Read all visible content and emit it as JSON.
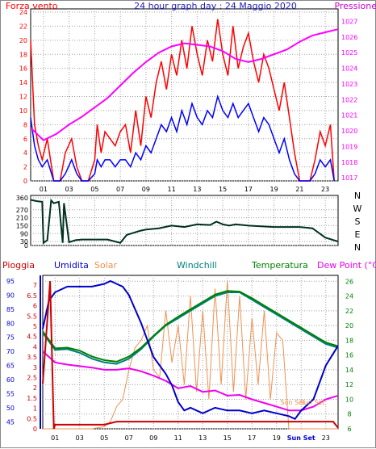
{
  "colors": {
    "wind_speed": "#ff0000",
    "wind_gust_low": "#0000ff",
    "pressure": "#ff00ff",
    "direction": "#003020",
    "rain": "#cc0000",
    "humidity": "#0000cc",
    "solar": "#f09050",
    "windchill": "#008080",
    "temperature": "#008000",
    "dewpoint": "#ee00ee",
    "grid": "#a0a0a0"
  },
  "chart_data": [
    {
      "type": "line",
      "title": "24 hour graph day : 24 Maggio 2020",
      "title_left": "Forza vento",
      "title_right": "Pressione",
      "xlabel": "",
      "ylabel": "",
      "x_tick_labels": [
        "01",
        "03",
        "05",
        "07",
        "09",
        "11",
        "13",
        "15",
        "17",
        "19",
        "21",
        "23"
      ],
      "left_axis": {
        "ticks": [
          0,
          2,
          4,
          6,
          8,
          10,
          12,
          14,
          16,
          18,
          20,
          22,
          24
        ],
        "ylim": [
          0,
          24
        ]
      },
      "right_axis": {
        "ticks": [
          1017,
          1018,
          1019,
          1020,
          1021,
          1022,
          1023,
          1024,
          1025,
          1026,
          1027
        ],
        "ylim": [
          1016.8,
          1027.8
        ]
      },
      "grid": true,
      "series": [
        {
          "name": "Forza vento",
          "axis": "left",
          "x": [
            0,
            0.3,
            0.6,
            0.9,
            1.3,
            1.8,
            2.3,
            2.7,
            3.2,
            3.6,
            4.0,
            4.5,
            5.0,
            5.2,
            5.5,
            5.8,
            6.2,
            6.6,
            7.0,
            7.4,
            7.8,
            8.2,
            8.6,
            9.0,
            9.4,
            9.8,
            10.2,
            10.6,
            11.0,
            11.4,
            11.8,
            12.2,
            12.6,
            13.0,
            13.4,
            13.8,
            14.2,
            14.6,
            15.0,
            15.4,
            15.8,
            16.2,
            16.6,
            17.0,
            17.4,
            17.8,
            18.2,
            18.6,
            19.0,
            19.4,
            19.8,
            20.2,
            20.6,
            21.0,
            21.4,
            21.8,
            22.2,
            22.6,
            23.0,
            23.4,
            23.7
          ],
          "y": [
            20,
            8,
            5,
            3,
            6,
            0,
            0,
            4,
            6,
            2,
            0,
            0,
            3,
            8,
            4,
            7,
            6,
            5,
            7,
            8,
            4,
            10,
            5,
            12,
            9,
            14,
            17,
            13,
            18,
            15,
            20,
            16,
            22,
            18,
            15,
            20,
            17,
            23,
            18,
            15,
            22,
            16,
            19,
            21,
            17,
            14,
            18,
            16,
            13,
            10,
            14,
            9,
            4,
            0,
            0,
            0,
            3,
            7,
            5,
            8,
            0
          ]
        },
        {
          "name": "wind low",
          "axis": "left",
          "x": [
            0,
            0.3,
            0.6,
            0.9,
            1.3,
            1.8,
            2.3,
            2.7,
            3.2,
            3.6,
            4.0,
            4.5,
            5.0,
            5.2,
            5.5,
            5.8,
            6.2,
            6.6,
            7.0,
            7.4,
            7.8,
            8.2,
            8.6,
            9.0,
            9.4,
            9.8,
            10.2,
            10.6,
            11.0,
            11.4,
            11.8,
            12.2,
            12.6,
            13.0,
            13.4,
            13.8,
            14.2,
            14.6,
            15.0,
            15.4,
            15.8,
            16.2,
            16.6,
            17.0,
            17.4,
            17.8,
            18.2,
            18.6,
            19.0,
            19.4,
            19.8,
            20.2,
            20.6,
            21.0,
            21.4,
            21.8,
            22.2,
            22.6,
            23.0,
            23.4,
            23.7
          ],
          "y": [
            9,
            5,
            3,
            2,
            3,
            0,
            0,
            1,
            3,
            1,
            0,
            0,
            1,
            3,
            2,
            3,
            3,
            2,
            3,
            3,
            2,
            4,
            3,
            5,
            4,
            6,
            8,
            7,
            9,
            7,
            10,
            8,
            11,
            9,
            8,
            10,
            9,
            12,
            10,
            9,
            11,
            9,
            10,
            11,
            9,
            7,
            9,
            8,
            6,
            4,
            6,
            3,
            1,
            0,
            0,
            0,
            1,
            3,
            2,
            3,
            0
          ]
        },
        {
          "name": "Pressione",
          "axis": "right",
          "x": [
            0,
            1,
            2,
            3,
            4,
            5,
            6,
            7,
            8,
            9,
            10,
            11,
            12,
            13,
            14,
            15,
            16,
            17,
            18,
            19,
            20,
            21,
            22,
            23,
            24
          ],
          "y": [
            1020.2,
            1019.4,
            1019.8,
            1020.4,
            1020.9,
            1021.5,
            1022.1,
            1022.9,
            1023.7,
            1024.4,
            1025.0,
            1025.4,
            1025.6,
            1025.5,
            1025.4,
            1025.1,
            1024.6,
            1024.4,
            1024.6,
            1024.9,
            1025.2,
            1025.7,
            1026.1,
            1026.3,
            1026.5
          ]
        }
      ]
    },
    {
      "type": "line",
      "title": "",
      "xlabel": "",
      "ylabel": "",
      "left_axis": {
        "ticks": [
          0,
          30,
          90,
          150,
          210,
          270,
          360
        ],
        "ylim": [
          0,
          360
        ]
      },
      "right_axis": {
        "labels": [
          "N",
          "W",
          "S",
          "E",
          "N"
        ]
      },
      "grid": true,
      "series": [
        {
          "name": "direzione",
          "x": [
            0,
            0.5,
            0.9,
            1.0,
            1.3,
            1.6,
            1.8,
            2.2,
            2.5,
            2.6,
            3.0,
            3.5,
            4.0,
            5.0,
            6.0,
            7.0,
            7.5,
            8.0,
            8.5,
            9.0,
            10.0,
            11.0,
            12.0,
            13.0,
            14.0,
            14.5,
            15.0,
            15.5,
            16.0,
            17.0,
            18.0,
            19.0,
            20.0,
            21.0,
            22.0,
            23.0,
            24.0
          ],
          "y": [
            345,
            335,
            330,
            20,
            40,
            340,
            320,
            330,
            20,
            320,
            25,
            40,
            45,
            45,
            45,
            20,
            80,
            95,
            110,
            120,
            130,
            150,
            140,
            160,
            155,
            180,
            160,
            150,
            160,
            150,
            145,
            140,
            140,
            140,
            130,
            60,
            30
          ]
        }
      ]
    },
    {
      "type": "line",
      "title": "",
      "xlabel": "",
      "ylabel": "",
      "legend": [
        "Pioggia",
        "Umidita",
        "Solar",
        "Windchill",
        "Temperatura",
        "Dew Point (°C)"
      ],
      "rain_axis": {
        "ticks": [
          0,
          0.5,
          1,
          1.5,
          2,
          2.5,
          3,
          3.5,
          4,
          4.5,
          5,
          5.5,
          6,
          6.5,
          7
        ],
        "ylim": [
          0,
          7.4
        ]
      },
      "humidity_axis": {
        "ticks": [
          45,
          50,
          55,
          60,
          65,
          70,
          75,
          80,
          85,
          90,
          95
        ],
        "ylim": [
          42.5,
          97
        ]
      },
      "temperature_axis": {
        "ticks": [
          6,
          8,
          10,
          12,
          14,
          16,
          18,
          20,
          22,
          24,
          26
        ],
        "ylim": [
          6,
          26.8
        ]
      },
      "x_tick_labels": [
        "01",
        "03",
        "05",
        "07",
        "09",
        "11",
        "13",
        "15",
        "17",
        "19",
        "Sun Set",
        "23"
      ],
      "annotations": [
        "Sun Set",
        "Sun Set"
      ],
      "grid": true,
      "series": [
        {
          "name": "Pioggia",
          "axis": "rain",
          "x": [
            0,
            0.6,
            0.9,
            1.0,
            1.5,
            4.0,
            5.0,
            6.0,
            7.0,
            10.0,
            15.0,
            20.0,
            23.0,
            23.6,
            24.0
          ],
          "y": [
            2.2,
            7.2,
            0,
            0.2,
            0.2,
            0.2,
            0.2,
            0.35,
            0.35,
            0.35,
            0.35,
            0.35,
            0.35,
            0.35,
            0.05
          ]
        },
        {
          "name": "Umidita",
          "axis": "humidity",
          "x": [
            0,
            0.5,
            1.0,
            1.5,
            2.0,
            3.0,
            4.0,
            5.0,
            5.5,
            6.0,
            6.5,
            7.0,
            8.0,
            9.0,
            10.0,
            10.5,
            11.0,
            11.5,
            12.0,
            13.0,
            14.0,
            15.0,
            16.0,
            17.0,
            18.0,
            19.0,
            20.0,
            20.5,
            21.0,
            22.0,
            23.0,
            24.0
          ],
          "y": [
            78,
            88,
            91,
            92,
            93,
            93,
            93,
            94,
            95,
            94,
            93,
            90,
            80,
            68,
            62,
            58,
            52,
            49,
            50,
            48,
            50,
            49,
            49,
            48,
            49,
            48,
            47,
            46,
            49,
            53,
            65,
            72
          ]
        },
        {
          "name": "Solar",
          "axis": "temperature",
          "x": [
            0,
            4.0,
            5.0,
            5.5,
            6.0,
            6.5,
            7.0,
            7.5,
            8.0,
            8.5,
            9.0,
            9.5,
            10.0,
            10.5,
            11.0,
            11.5,
            12.0,
            12.5,
            13.0,
            13.5,
            14.0,
            14.5,
            15.0,
            15.5,
            16.0,
            16.5,
            17.0,
            17.5,
            18.0,
            18.5,
            19.0,
            19.5,
            20.0,
            21.0,
            24.0
          ],
          "y": [
            6,
            6,
            6.3,
            7,
            9,
            10,
            14,
            17,
            18,
            20,
            14,
            13,
            22,
            15,
            20,
            12,
            24,
            11,
            22,
            10,
            25,
            12,
            26,
            11,
            24,
            10,
            21,
            12,
            22,
            10,
            19,
            18,
            6,
            6,
            6
          ]
        },
        {
          "name": "Windchill",
          "axis": "temperature",
          "x": [
            0,
            1,
            2,
            3,
            4,
            5,
            6,
            7,
            8,
            9,
            10,
            11,
            12,
            13,
            14,
            15,
            16,
            17,
            18,
            19,
            20,
            21,
            22,
            23,
            24
          ],
          "y": [
            19,
            16.7,
            16.8,
            16.3,
            15.5,
            15,
            14.8,
            15.5,
            16.8,
            18.5,
            20,
            21,
            22,
            23,
            24,
            24.5,
            24.5,
            23.5,
            22.5,
            21.5,
            20.5,
            19.5,
            18.5,
            17.5,
            17
          ]
        },
        {
          "name": "Temperatura",
          "axis": "temperature",
          "x": [
            0,
            1,
            2,
            3,
            4,
            5,
            6,
            7,
            8,
            9,
            10,
            11,
            12,
            13,
            14,
            15,
            16,
            17,
            18,
            19,
            20,
            21,
            22,
            23,
            24
          ],
          "y": [
            19.2,
            16.9,
            17,
            16.6,
            15.8,
            15.3,
            15.1,
            15.8,
            17,
            18.6,
            20.1,
            21.2,
            22.2,
            23.2,
            24.2,
            24.7,
            24.6,
            23.7,
            22.7,
            21.7,
            20.7,
            19.7,
            18.7,
            17.7,
            17.2
          ]
        },
        {
          "name": "Dew Point (°C)",
          "axis": "temperature",
          "x": [
            0,
            1,
            2,
            3,
            4,
            5,
            6,
            7,
            8,
            9,
            10,
            11,
            12,
            13,
            14,
            15,
            16,
            17,
            18,
            19,
            20,
            21,
            22,
            23,
            24
          ],
          "y": [
            16.5,
            15,
            14.7,
            14.5,
            14.3,
            14,
            14,
            14.2,
            13.8,
            13.2,
            12.5,
            11.5,
            11.8,
            11,
            11.2,
            10.5,
            10.6,
            10,
            9.5,
            9,
            8.5,
            8.5,
            9,
            10,
            10.5
          ]
        }
      ]
    }
  ],
  "charts": [
    {
      "title": "24 hour graph day : 24 Maggio 2020",
      "title_left": "Forza vento",
      "title_right": "Pressione"
    }
  ]
}
